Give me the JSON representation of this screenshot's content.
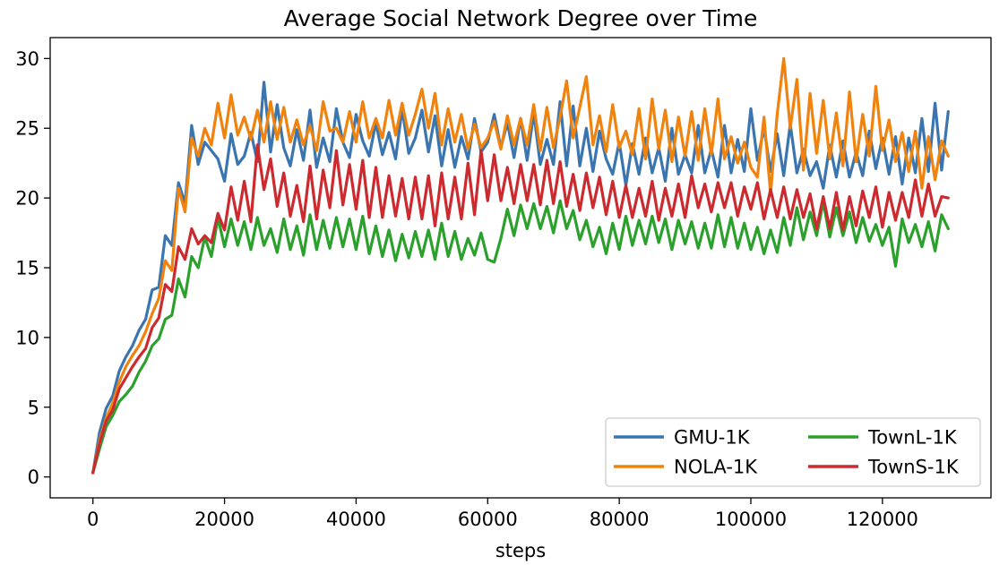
{
  "chart_data": {
    "type": "line",
    "title": "Average Social Network Degree over Time",
    "xlabel": "steps",
    "ylabel": "",
    "xlim": [
      -6500,
      136500
    ],
    "ylim": [
      -1.5,
      31.5
    ],
    "xticks": [
      0,
      20000,
      40000,
      60000,
      80000,
      100000,
      120000
    ],
    "yticks": [
      0,
      5,
      10,
      15,
      20,
      25,
      30
    ],
    "grid": false,
    "legend_position": "bottom-right",
    "legend_columns": 2,
    "x": [
      0,
      1000,
      2000,
      3000,
      4000,
      5000,
      6000,
      7000,
      8000,
      9000,
      10000,
      11000,
      12000,
      13000,
      14000,
      15000,
      16000,
      17000,
      18000,
      19000,
      20000,
      21000,
      22000,
      23000,
      24000,
      25000,
      26000,
      27000,
      28000,
      29000,
      30000,
      31000,
      32000,
      33000,
      34000,
      35000,
      36000,
      37000,
      38000,
      39000,
      40000,
      41000,
      42000,
      43000,
      44000,
      45000,
      46000,
      47000,
      48000,
      49000,
      50000,
      51000,
      52000,
      53000,
      54000,
      55000,
      56000,
      57000,
      58000,
      59000,
      60000,
      61000,
      62000,
      63000,
      64000,
      65000,
      66000,
      67000,
      68000,
      69000,
      70000,
      71000,
      72000,
      73000,
      74000,
      75000,
      76000,
      77000,
      78000,
      79000,
      80000,
      81000,
      82000,
      83000,
      84000,
      85000,
      86000,
      87000,
      88000,
      89000,
      90000,
      91000,
      92000,
      93000,
      94000,
      95000,
      96000,
      97000,
      98000,
      99000,
      100000,
      101000,
      102000,
      103000,
      104000,
      105000,
      106000,
      107000,
      108000,
      109000,
      110000,
      111000,
      112000,
      113000,
      114000,
      115000,
      116000,
      117000,
      118000,
      119000,
      120000,
      121000,
      122000,
      123000,
      124000,
      125000,
      126000,
      127000,
      128000,
      129000,
      130000
    ],
    "series": [
      {
        "name": "GMU-1K",
        "color": "#3a75b0",
        "values": [
          0.3,
          3.2,
          4.9,
          5.8,
          7.6,
          8.6,
          9.4,
          10.5,
          11.3,
          13.4,
          13.6,
          17.3,
          16.6,
          21.1,
          19.6,
          25.2,
          22.4,
          24.0,
          23.4,
          22.8,
          21.2,
          24.6,
          22.4,
          23.0,
          24.7,
          22.6,
          28.3,
          23.3,
          26.7,
          23.6,
          22.3,
          24.9,
          22.7,
          26.3,
          22.2,
          24.3,
          22.6,
          26.4,
          24.0,
          22.9,
          26.0,
          24.1,
          23.0,
          25.4,
          23.1,
          24.7,
          22.8,
          26.4,
          23.2,
          24.3,
          26.3,
          23.3,
          25.9,
          22.3,
          24.9,
          22.2,
          24.4,
          22.8,
          25.7,
          23.3,
          24.0,
          26.0,
          23.6,
          25.4,
          22.9,
          25.7,
          22.7,
          26.1,
          22.4,
          24.2,
          22.4,
          26.9,
          22.3,
          26.6,
          22.3,
          25.0,
          21.9,
          24.8,
          22.8,
          21.7,
          24.0,
          20.9,
          23.9,
          21.7,
          24.3,
          21.8,
          23.6,
          21.2,
          25.0,
          21.7,
          23.1,
          21.8,
          25.2,
          21.8,
          23.5,
          21.5,
          25.2,
          21.8,
          24.2,
          21.9,
          26.4,
          22.7,
          25.0,
          21.9,
          24.6,
          21.6,
          25.3,
          21.8,
          23.5,
          21.6,
          22.6,
          20.7,
          23.8,
          21.5,
          24.1,
          21.5,
          23.3,
          21.6,
          24.8,
          22.1,
          24.3,
          21.7,
          24.4,
          21.0,
          24.3,
          21.8,
          25.7,
          21.9,
          26.8,
          22.0,
          26.2
        ]
      },
      {
        "name": "NOLA-1K",
        "color": "#f0820e",
        "values": [
          0.3,
          2.6,
          4.2,
          5.3,
          6.8,
          7.9,
          8.7,
          9.4,
          10.4,
          11.7,
          12.8,
          15.5,
          14.8,
          20.7,
          19.0,
          24.3,
          23.0,
          25.0,
          23.8,
          26.8,
          24.3,
          27.4,
          24.5,
          25.8,
          24.2,
          26.3,
          24.0,
          26.9,
          24.2,
          26.5,
          24.0,
          25.6,
          23.8,
          25.2,
          23.4,
          26.9,
          24.8,
          25.0,
          24.0,
          26.2,
          24.0,
          26.9,
          24.3,
          25.7,
          24.3,
          27.0,
          24.5,
          26.8,
          24.5,
          26.0,
          27.8,
          25.0,
          27.5,
          23.8,
          26.4,
          24.0,
          26.0,
          23.5,
          25.3,
          23.6,
          24.3,
          25.5,
          23.5,
          25.9,
          23.8,
          25.7,
          23.8,
          26.7,
          23.4,
          26.5,
          23.6,
          25.8,
          28.4,
          24.3,
          26.5,
          28.7,
          23.8,
          25.9,
          23.3,
          26.7,
          23.6,
          24.8,
          23.1,
          26.4,
          22.8,
          27.1,
          23.5,
          26.3,
          22.6,
          25.8,
          23.0,
          26.2,
          22.7,
          26.4,
          23.1,
          27.1,
          22.8,
          24.4,
          22.5,
          24.0,
          22.2,
          21.5,
          25.8,
          20.3,
          26.0,
          30.0,
          25.0,
          28.5,
          22.0,
          27.5,
          23.2,
          27.0,
          22.8,
          26.1,
          22.3,
          27.6,
          22.6,
          26.0,
          23.0,
          28.0,
          23.4,
          25.6,
          22.6,
          24.7,
          21.9,
          24.8,
          20.7,
          24.4,
          21.3,
          24.1,
          23.0
        ]
      },
      {
        "name": "TownL-1K",
        "color": "#2ca02c",
        "values": [
          0.3,
          2.0,
          3.6,
          4.4,
          5.4,
          5.9,
          6.5,
          7.5,
          8.3,
          9.4,
          9.9,
          11.3,
          11.6,
          14.2,
          12.9,
          15.8,
          15.0,
          17.2,
          15.8,
          18.6,
          16.5,
          18.5,
          16.6,
          18.3,
          16.3,
          18.6,
          16.6,
          17.8,
          16.1,
          18.5,
          16.3,
          18.0,
          15.9,
          18.8,
          16.3,
          18.4,
          16.4,
          18.6,
          16.5,
          18.5,
          16.3,
          18.7,
          16.0,
          18.0,
          15.8,
          17.7,
          15.5,
          17.4,
          15.7,
          17.6,
          15.8,
          17.7,
          15.6,
          18.2,
          15.8,
          17.6,
          15.6,
          17.1,
          15.9,
          17.5,
          15.6,
          15.4,
          17.1,
          19.2,
          17.3,
          19.5,
          17.8,
          19.6,
          17.8,
          19.4,
          17.5,
          19.8,
          17.8,
          19.1,
          17.0,
          18.4,
          16.5,
          17.9,
          16.0,
          18.2,
          16.3,
          18.7,
          16.6,
          18.4,
          16.7,
          18.7,
          16.8,
          18.5,
          16.3,
          18.4,
          16.7,
          18.3,
          16.4,
          18.2,
          16.4,
          18.8,
          16.5,
          18.6,
          16.4,
          18.2,
          16.3,
          17.9,
          16.0,
          17.7,
          16.1,
          18.6,
          16.6,
          19.3,
          17.0,
          19.0,
          17.3,
          19.7,
          17.2,
          19.3,
          17.3,
          19.0,
          16.8,
          18.6,
          16.9,
          18.1,
          16.6,
          17.9,
          15.1,
          18.5,
          16.8,
          18.1,
          16.5,
          18.3,
          16.2,
          18.8,
          17.8
        ]
      },
      {
        "name": "TownS-1K",
        "color": "#cc2a2e",
        "values": [
          0.3,
          2.4,
          4.0,
          4.8,
          6.3,
          7.1,
          7.9,
          8.6,
          9.2,
          10.7,
          11.4,
          13.8,
          13.3,
          16.5,
          15.6,
          17.8,
          16.7,
          17.3,
          16.8,
          18.9,
          17.7,
          20.8,
          18.4,
          21.2,
          18.3,
          23.8,
          20.6,
          22.8,
          19.4,
          21.8,
          18.7,
          20.9,
          18.3,
          22.3,
          18.5,
          22.0,
          19.3,
          23.4,
          19.5,
          22.4,
          19.2,
          22.7,
          18.6,
          22.2,
          18.6,
          21.6,
          18.7,
          21.4,
          18.5,
          21.5,
          18.5,
          21.6,
          18.0,
          21.8,
          18.5,
          21.5,
          18.5,
          22.5,
          18.8,
          23.4,
          19.8,
          23.1,
          19.8,
          22.2,
          19.6,
          22.4,
          19.8,
          22.4,
          19.5,
          22.7,
          19.6,
          22.6,
          19.4,
          21.7,
          19.1,
          21.8,
          19.3,
          21.5,
          18.8,
          21.2,
          18.6,
          20.9,
          18.6,
          20.7,
          18.7,
          21.2,
          18.4,
          20.7,
          18.7,
          21.0,
          18.6,
          21.6,
          19.3,
          21.0,
          19.0,
          21.1,
          19.3,
          21.1,
          18.7,
          20.8,
          19.2,
          21.1,
          18.5,
          20.6,
          18.6,
          20.8,
          18.5,
          20.6,
          18.6,
          20.3,
          17.8,
          20.1,
          17.8,
          20.4,
          17.7,
          20.1,
          18.0,
          20.5,
          18.6,
          20.8,
          17.9,
          20.4,
          18.4,
          20.4,
          18.6,
          21.3,
          18.7,
          21.0,
          18.7,
          20.1,
          20.0
        ]
      }
    ]
  }
}
